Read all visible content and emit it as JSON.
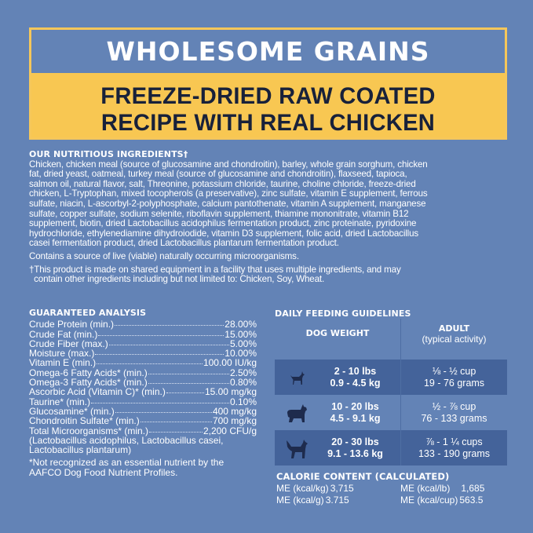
{
  "banner": {
    "title": "WHOLESOME GRAINS",
    "subtitle_lines": [
      "FREEZE-DRIED RAW COATED",
      "RECIPE WITH REAL CHICKEN"
    ]
  },
  "ingredients": {
    "heading": "OUR NUTRITIOUS INGREDIENTS†",
    "lines": [
      "Chicken, chicken meal (source of glucosamine and chondroitin), barley, whole grain sorghum, chicken",
      "fat, dried yeast, oatmeal, turkey meal (source of glucosamine and chondroitin), flaxseed, tapioca,",
      "salmon oil, natural flavor, salt, Threonine, potassium chloride, taurine, choline chloride, freeze-dried",
      "chicken, L-Tryptophan, mixed tocopherols (a preservative), zinc sulfate, vitamin E supplement, ferrous",
      "sulfate, niacin, L-ascorbyl-2-polyphosphate, calcium pantothenate, vitamin A supplement, manganese",
      "sulfate, copper sulfate, sodium selenite, riboflavin supplement, thiamine mononitrate, vitamin B12",
      "supplement, biotin, dried Lactobacillus acidophilus fermentation product, zinc proteinate, pyridoxine",
      "hydrochloride, ethylenediamine dihydroiodide, vitamin D3 supplement, folic acid, dried Lactobacillus",
      "casei fermentation product, dried Lactobacillus plantarum fermentation product."
    ],
    "live_note": "Contains a source of live (viable) naturally occurring microorganisms.",
    "facility_note_lines": [
      "†This product is made on shared equipment in a facility that uses multiple ingredients, and may",
      "  contain other ingredients including but not limited to: Chicken, Soy, Wheat."
    ]
  },
  "analysis": {
    "heading": "GUARANTEED ANALYSIS",
    "rows": [
      {
        "label": "Crude Protein (min.)",
        "value": "28.00%"
      },
      {
        "label": "Crude Fat (min.)",
        "value": "15.00%"
      },
      {
        "label": "Crude Fiber (max.)",
        "value": "5.00%"
      },
      {
        "label": "Moisture (max.)",
        "value": "10.00%"
      },
      {
        "label": "Vitamin E (min.)",
        "value": "100.00 IU/kg"
      },
      {
        "label": "Omega-6 Fatty Acids* (min.)",
        "value": "2.50%"
      },
      {
        "label": "Omega-3 Fatty Acids* (min.)",
        "value": "0.80%"
      },
      {
        "label": "Ascorbic Acid (Vitamin C)* (min.)",
        "value": "15.00 mg/kg"
      },
      {
        "label": "Taurine* (min.)",
        "value": "0.10%"
      },
      {
        "label": "Glucosamine* (min.)",
        "value": "400 mg/kg"
      },
      {
        "label": "Chondroitin Sulfate* (min.)",
        "value": "700 mg/kg"
      },
      {
        "label": "Total Microorganisms* (min.)",
        "value": "2,200 CFU/g"
      }
    ],
    "strains_lines": [
      "(Lactobacillus acidophilus, Lactobacillus casei,",
      "Lactobacillus plantarum)"
    ],
    "footnote_lines": [
      "*Not recognized as an essential nutrient by the",
      "AAFCO Dog Food Nutrient Profiles."
    ]
  },
  "feeding": {
    "heading": "DAILY FEEDING GUIDELINES",
    "col_weight": "DOG WEIGHT",
    "col_adult": "ADULT",
    "col_adult_sub": "(typical activity)",
    "rows": [
      {
        "icon": "small-dog-icon",
        "lbs": "2 - 10 lbs",
        "kg": "0.9 - 4.5 kg",
        "cups": "⅛ - ½ cup",
        "grams": "19 - 76 grams"
      },
      {
        "icon": "medium-dog-icon",
        "lbs": "10 - 20 lbs",
        "kg": "4.5 - 9.1 kg",
        "cups": "½ - ⅞ cup",
        "grams": "76 - 133 grams"
      },
      {
        "icon": "large-dog-icon",
        "lbs": "20 - 30 lbs",
        "kg": "9.1 - 13.6 kg",
        "cups": "⅞ - 1 ¼ cups",
        "grams": "133 - 190 grams"
      }
    ]
  },
  "calorie": {
    "heading": "CALORIE CONTENT (CALCULATED)",
    "items": [
      {
        "label": "ME (kcal/kg)",
        "value": "3,715"
      },
      {
        "label": "ME (kcal/lb)",
        "value": "1,685"
      },
      {
        "label": "ME (kcal/g)",
        "value": "3.715"
      },
      {
        "label": "ME (kcal/cup)",
        "value": "563.5"
      }
    ]
  },
  "colors": {
    "background": "#6383b6",
    "banner_yellow": "#f8c752",
    "dark_row": "#44639a",
    "navy_text": "#18213a"
  }
}
